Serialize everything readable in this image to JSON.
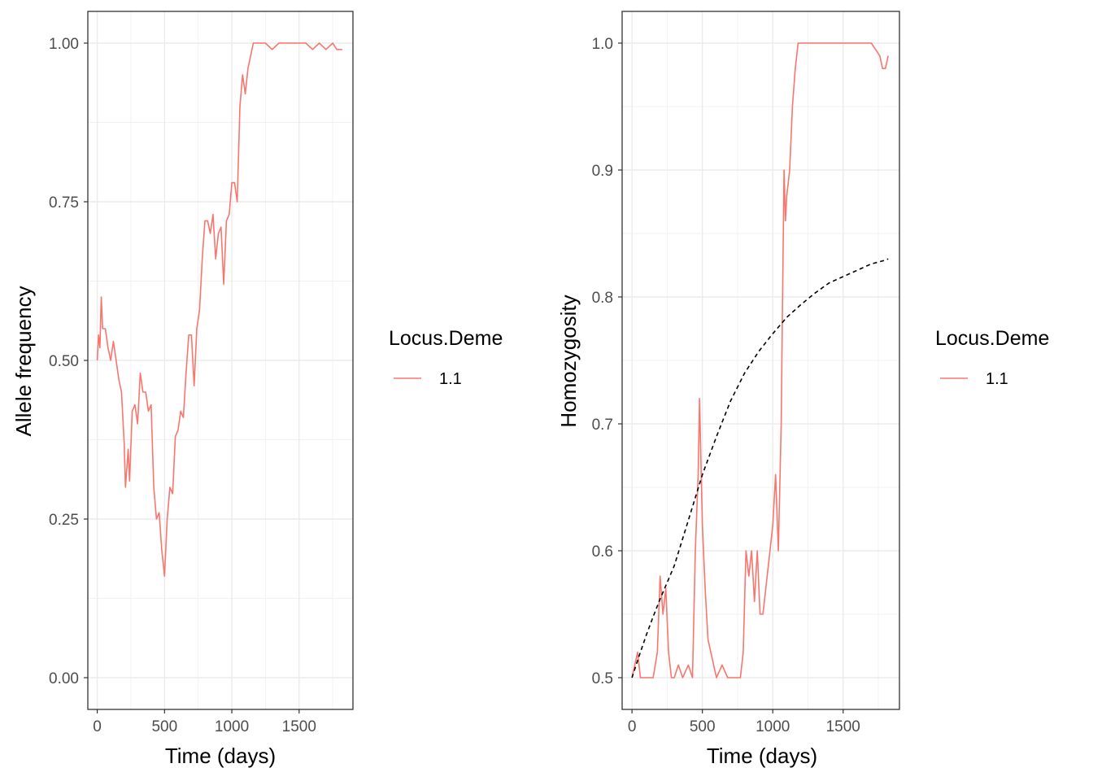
{
  "chart_data": [
    {
      "type": "line",
      "xlabel": "Time (days)",
      "ylabel": "Allele frequency",
      "xlim": [
        -70,
        1900
      ],
      "ylim": [
        -0.05,
        1.05
      ],
      "x_ticks": [
        0,
        500,
        1000,
        1500
      ],
      "x_tick_labels": [
        "0",
        "500",
        "1000",
        "1500"
      ],
      "y_ticks": [
        0,
        0.25,
        0.5,
        0.75,
        1.0
      ],
      "y_tick_labels": [
        "0.00",
        "0.25",
        "0.50",
        "0.75",
        "1.00"
      ],
      "grid": true,
      "legend": {
        "title": "Locus.Deme",
        "position": "right",
        "entries": [
          {
            "label": "1.1",
            "color": "#F8766D"
          }
        ]
      },
      "series": [
        {
          "name": "1.1",
          "color": "#F8766D",
          "style": "solid",
          "points": [
            [
              0,
              0.5
            ],
            [
              10,
              0.54
            ],
            [
              20,
              0.52
            ],
            [
              30,
              0.6
            ],
            [
              40,
              0.55
            ],
            [
              60,
              0.55
            ],
            [
              80,
              0.52
            ],
            [
              100,
              0.5
            ],
            [
              120,
              0.53
            ],
            [
              140,
              0.5
            ],
            [
              160,
              0.47
            ],
            [
              180,
              0.45
            ],
            [
              200,
              0.37
            ],
            [
              210,
              0.3
            ],
            [
              220,
              0.33
            ],
            [
              230,
              0.36
            ],
            [
              240,
              0.31
            ],
            [
              260,
              0.42
            ],
            [
              280,
              0.43
            ],
            [
              300,
              0.4
            ],
            [
              320,
              0.48
            ],
            [
              340,
              0.45
            ],
            [
              360,
              0.45
            ],
            [
              380,
              0.42
            ],
            [
              400,
              0.43
            ],
            [
              420,
              0.3
            ],
            [
              440,
              0.25
            ],
            [
              460,
              0.26
            ],
            [
              480,
              0.2
            ],
            [
              500,
              0.16
            ],
            [
              520,
              0.25
            ],
            [
              540,
              0.3
            ],
            [
              560,
              0.29
            ],
            [
              580,
              0.38
            ],
            [
              600,
              0.39
            ],
            [
              620,
              0.42
            ],
            [
              640,
              0.41
            ],
            [
              660,
              0.48
            ],
            [
              680,
              0.54
            ],
            [
              700,
              0.54
            ],
            [
              720,
              0.46
            ],
            [
              740,
              0.55
            ],
            [
              760,
              0.58
            ],
            [
              780,
              0.66
            ],
            [
              800,
              0.72
            ],
            [
              820,
              0.72
            ],
            [
              840,
              0.7
            ],
            [
              860,
              0.73
            ],
            [
              880,
              0.66
            ],
            [
              900,
              0.7
            ],
            [
              920,
              0.71
            ],
            [
              940,
              0.62
            ],
            [
              960,
              0.72
            ],
            [
              980,
              0.73
            ],
            [
              1000,
              0.78
            ],
            [
              1020,
              0.78
            ],
            [
              1040,
              0.75
            ],
            [
              1060,
              0.9
            ],
            [
              1080,
              0.95
            ],
            [
              1100,
              0.92
            ],
            [
              1120,
              0.96
            ],
            [
              1140,
              0.98
            ],
            [
              1160,
              1.0
            ],
            [
              1200,
              1.0
            ],
            [
              1250,
              1.0
            ],
            [
              1300,
              0.99
            ],
            [
              1350,
              1.0
            ],
            [
              1400,
              1.0
            ],
            [
              1450,
              1.0
            ],
            [
              1500,
              1.0
            ],
            [
              1550,
              1.0
            ],
            [
              1600,
              0.99
            ],
            [
              1650,
              1.0
            ],
            [
              1700,
              0.99
            ],
            [
              1750,
              1.0
            ],
            [
              1780,
              0.99
            ],
            [
              1800,
              0.99
            ],
            [
              1820,
              0.99
            ]
          ]
        }
      ]
    },
    {
      "type": "line",
      "xlabel": "Time (days)",
      "ylabel": "Homozygosity",
      "xlim": [
        -70,
        1900
      ],
      "ylim": [
        0.475,
        1.025
      ],
      "x_ticks": [
        0,
        500,
        1000,
        1500
      ],
      "x_tick_labels": [
        "0",
        "500",
        "1000",
        "1500"
      ],
      "y_ticks": [
        0.5,
        0.6,
        0.7,
        0.8,
        0.9,
        1.0
      ],
      "y_tick_labels": [
        "0.5",
        "0.6",
        "0.7",
        "0.8",
        "0.9",
        "1.0"
      ],
      "grid": true,
      "legend": {
        "title": "Locus.Deme",
        "position": "right",
        "entries": [
          {
            "label": "1.1",
            "color": "#F8766D"
          }
        ]
      },
      "series": [
        {
          "name": "1.1",
          "color": "#F8766D",
          "style": "solid",
          "points": [
            [
              0,
              0.5
            ],
            [
              20,
              0.51
            ],
            [
              40,
              0.52
            ],
            [
              60,
              0.5
            ],
            [
              100,
              0.5
            ],
            [
              150,
              0.5
            ],
            [
              180,
              0.52
            ],
            [
              200,
              0.58
            ],
            [
              220,
              0.55
            ],
            [
              240,
              0.57
            ],
            [
              260,
              0.52
            ],
            [
              280,
              0.5
            ],
            [
              300,
              0.5
            ],
            [
              330,
              0.51
            ],
            [
              360,
              0.5
            ],
            [
              400,
              0.51
            ],
            [
              430,
              0.5
            ],
            [
              450,
              0.6
            ],
            [
              470,
              0.66
            ],
            [
              480,
              0.72
            ],
            [
              490,
              0.67
            ],
            [
              500,
              0.62
            ],
            [
              520,
              0.57
            ],
            [
              540,
              0.53
            ],
            [
              560,
              0.52
            ],
            [
              580,
              0.51
            ],
            [
              600,
              0.5
            ],
            [
              640,
              0.51
            ],
            [
              680,
              0.5
            ],
            [
              720,
              0.5
            ],
            [
              750,
              0.5
            ],
            [
              770,
              0.5
            ],
            [
              790,
              0.52
            ],
            [
              810,
              0.6
            ],
            [
              830,
              0.58
            ],
            [
              850,
              0.6
            ],
            [
              870,
              0.56
            ],
            [
              890,
              0.6
            ],
            [
              910,
              0.55
            ],
            [
              930,
              0.55
            ],
            [
              950,
              0.57
            ],
            [
              980,
              0.6
            ],
            [
              1000,
              0.62
            ],
            [
              1020,
              0.66
            ],
            [
              1040,
              0.6
            ],
            [
              1060,
              0.7
            ],
            [
              1070,
              0.8
            ],
            [
              1080,
              0.9
            ],
            [
              1090,
              0.86
            ],
            [
              1100,
              0.88
            ],
            [
              1120,
              0.9
            ],
            [
              1140,
              0.95
            ],
            [
              1160,
              0.98
            ],
            [
              1180,
              1.0
            ],
            [
              1200,
              1.0
            ],
            [
              1300,
              1.0
            ],
            [
              1400,
              1.0
            ],
            [
              1500,
              1.0
            ],
            [
              1600,
              1.0
            ],
            [
              1700,
              1.0
            ],
            [
              1760,
              0.99
            ],
            [
              1780,
              0.98
            ],
            [
              1800,
              0.98
            ],
            [
              1820,
              0.99
            ]
          ]
        },
        {
          "name": "",
          "color": "#000000",
          "style": "dashed",
          "points": [
            [
              0,
              0.5
            ],
            [
              50,
              0.517
            ],
            [
              100,
              0.533
            ],
            [
              150,
              0.548
            ],
            [
              200,
              0.562
            ],
            [
              300,
              0.588
            ],
            [
              400,
              0.624
            ],
            [
              500,
              0.66
            ],
            [
              600,
              0.69
            ],
            [
              700,
              0.718
            ],
            [
              800,
              0.74
            ],
            [
              900,
              0.757
            ],
            [
              1000,
              0.771
            ],
            [
              1100,
              0.784
            ],
            [
              1200,
              0.794
            ],
            [
              1300,
              0.803
            ],
            [
              1400,
              0.811
            ],
            [
              1500,
              0.816
            ],
            [
              1600,
              0.821
            ],
            [
              1700,
              0.826
            ],
            [
              1800,
              0.829
            ],
            [
              1820,
              0.83
            ]
          ]
        }
      ]
    }
  ]
}
